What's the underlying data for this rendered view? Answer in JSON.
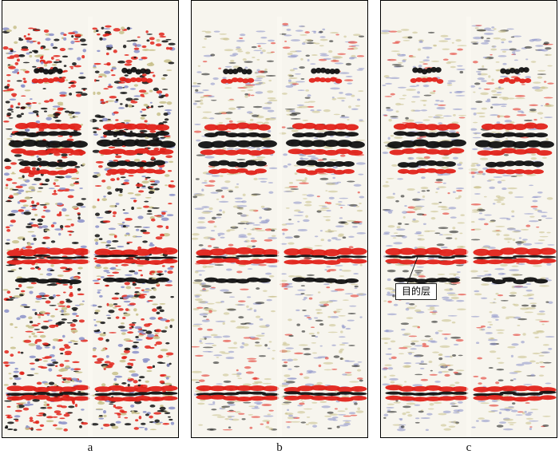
{
  "panels": [
    {
      "id": "a",
      "caption": "a"
    },
    {
      "id": "b",
      "caption": "b"
    },
    {
      "id": "c",
      "caption": "c"
    }
  ],
  "annotation": {
    "label": "目的层"
  },
  "colors": {
    "background": "#f7f5ee",
    "red": "#e2231a",
    "black": "#111111",
    "blue": "#8a8fc8",
    "tan": "#c8c08a"
  }
}
